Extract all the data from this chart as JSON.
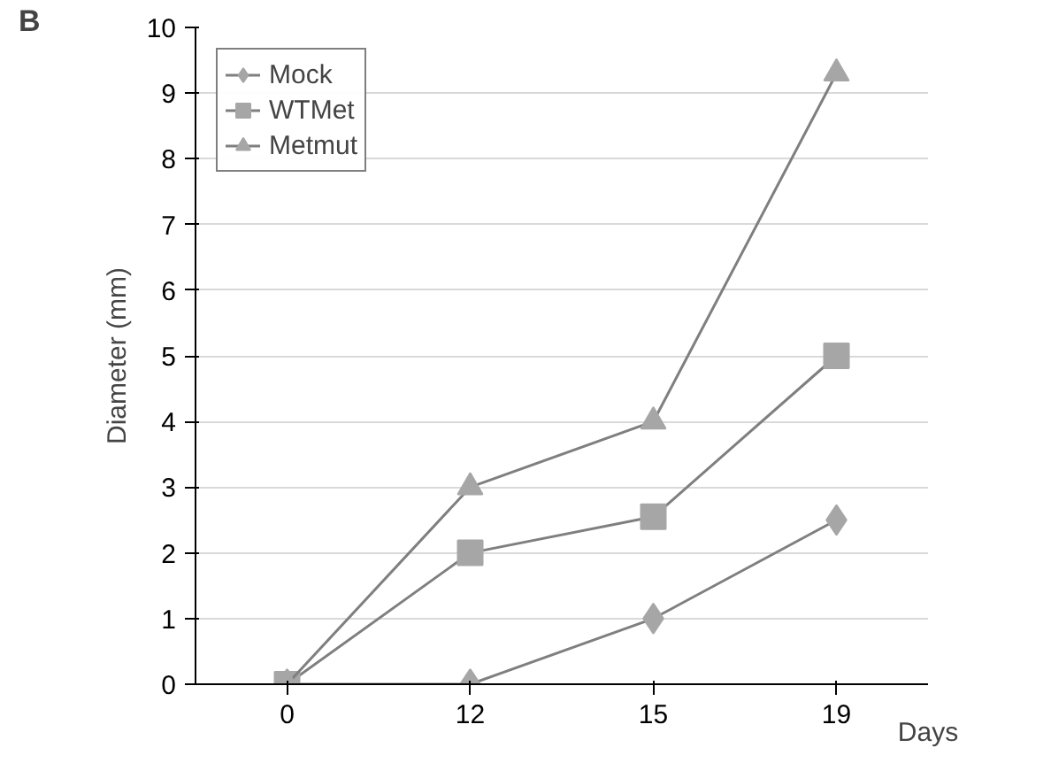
{
  "chart_data": {
    "type": "line",
    "ylabel": "Diameter (mm)",
    "xlabel": "Days",
    "annotations": [
      "B"
    ],
    "categories": [
      "0",
      "12",
      "15",
      "19"
    ],
    "series": [
      {
        "name": "Mock",
        "color": "#a6a6a6",
        "marker": "diamond",
        "values": [
          0,
          0,
          1,
          2.5
        ]
      },
      {
        "name": "WTMet",
        "color": "#a6a6a6",
        "marker": "square",
        "values": [
          0,
          2,
          2.55,
          5
        ]
      },
      {
        "name": "Metmut",
        "color": "#a6a6a6",
        "marker": "triangle",
        "values": [
          0,
          3,
          4,
          9.3
        ]
      }
    ],
    "ylim": [
      0,
      10
    ],
    "yticks": [
      0,
      1,
      2,
      3,
      4,
      5,
      6,
      7,
      8,
      9,
      10
    ],
    "grid": "y",
    "legend": "top left",
    "line_style": "solid"
  }
}
